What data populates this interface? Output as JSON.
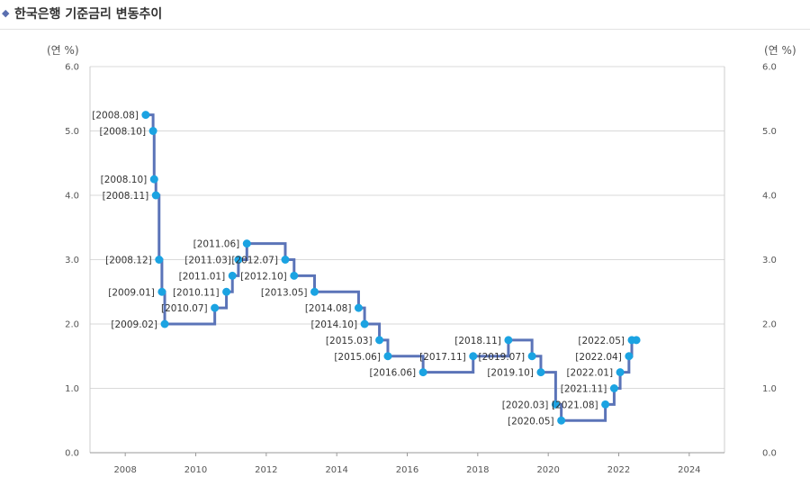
{
  "header": {
    "title": "한국은행 기준금리 변동추이"
  },
  "chart_data": {
    "type": "line",
    "line_style": "step",
    "color": "#5b74b8",
    "marker_color": "#1ba3e2",
    "y_unit_left": "(연 %)",
    "y_unit_right": "(연 %)",
    "xlim": [
      2007,
      2025
    ],
    "ylim": [
      0,
      6
    ],
    "xticks": [
      2008,
      2010,
      2012,
      2014,
      2016,
      2018,
      2020,
      2022,
      2024
    ],
    "yticks": [
      "0.0",
      "1.0",
      "2.0",
      "3.0",
      "4.0",
      "5.0",
      "6.0"
    ],
    "grid": true,
    "points": [
      {
        "x": 2008.58,
        "y": 5.25,
        "label": "[2008.08]"
      },
      {
        "x": 2008.79,
        "y": 5.0,
        "label": "[2008.10]"
      },
      {
        "x": 2008.82,
        "y": 4.25,
        "label": "[2008.10]"
      },
      {
        "x": 2008.87,
        "y": 4.0,
        "label": "[2008.11]"
      },
      {
        "x": 2008.96,
        "y": 3.0,
        "label": "[2008.12]"
      },
      {
        "x": 2009.04,
        "y": 2.5,
        "label": "[2009.01]"
      },
      {
        "x": 2009.12,
        "y": 2.0,
        "label": "[2009.02]"
      },
      {
        "x": 2010.54,
        "y": 2.25,
        "label": "[2010.07]"
      },
      {
        "x": 2010.87,
        "y": 2.5,
        "label": "[2010.11]"
      },
      {
        "x": 2011.04,
        "y": 2.75,
        "label": "[2011.01]"
      },
      {
        "x": 2011.21,
        "y": 3.0,
        "label": "[2011.03]"
      },
      {
        "x": 2011.45,
        "y": 3.25,
        "label": "[2011.06]"
      },
      {
        "x": 2012.54,
        "y": 3.0,
        "label": "[2012.07]"
      },
      {
        "x": 2012.79,
        "y": 2.75,
        "label": "[2012.10]"
      },
      {
        "x": 2013.37,
        "y": 2.5,
        "label": "[2013.05]"
      },
      {
        "x": 2014.62,
        "y": 2.25,
        "label": "[2014.08]"
      },
      {
        "x": 2014.79,
        "y": 2.0,
        "label": "[2014.10]"
      },
      {
        "x": 2015.21,
        "y": 1.75,
        "label": "[2015.03]"
      },
      {
        "x": 2015.45,
        "y": 1.5,
        "label": "[2015.06]"
      },
      {
        "x": 2016.45,
        "y": 1.25,
        "label": "[2016.06]"
      },
      {
        "x": 2017.87,
        "y": 1.5,
        "label": "[2017.11]"
      },
      {
        "x": 2018.87,
        "y": 1.75,
        "label": "[2018.11]"
      },
      {
        "x": 2019.54,
        "y": 1.5,
        "label": "[2019.07]"
      },
      {
        "x": 2019.79,
        "y": 1.25,
        "label": "[2019.10]"
      },
      {
        "x": 2020.21,
        "y": 0.75,
        "label": "[2020.03]"
      },
      {
        "x": 2020.37,
        "y": 0.5,
        "label": "[2020.05]"
      },
      {
        "x": 2021.62,
        "y": 0.75,
        "label": "[2021.08]"
      },
      {
        "x": 2021.87,
        "y": 1.0,
        "label": "[2021.11]"
      },
      {
        "x": 2022.04,
        "y": 1.25,
        "label": "[2022.01]"
      },
      {
        "x": 2022.29,
        "y": 1.5,
        "label": "[2022.04]"
      },
      {
        "x": 2022.37,
        "y": 1.75,
        "label": "[2022.05]"
      },
      {
        "x": 2022.5,
        "y": 1.75,
        "label": ""
      }
    ]
  }
}
